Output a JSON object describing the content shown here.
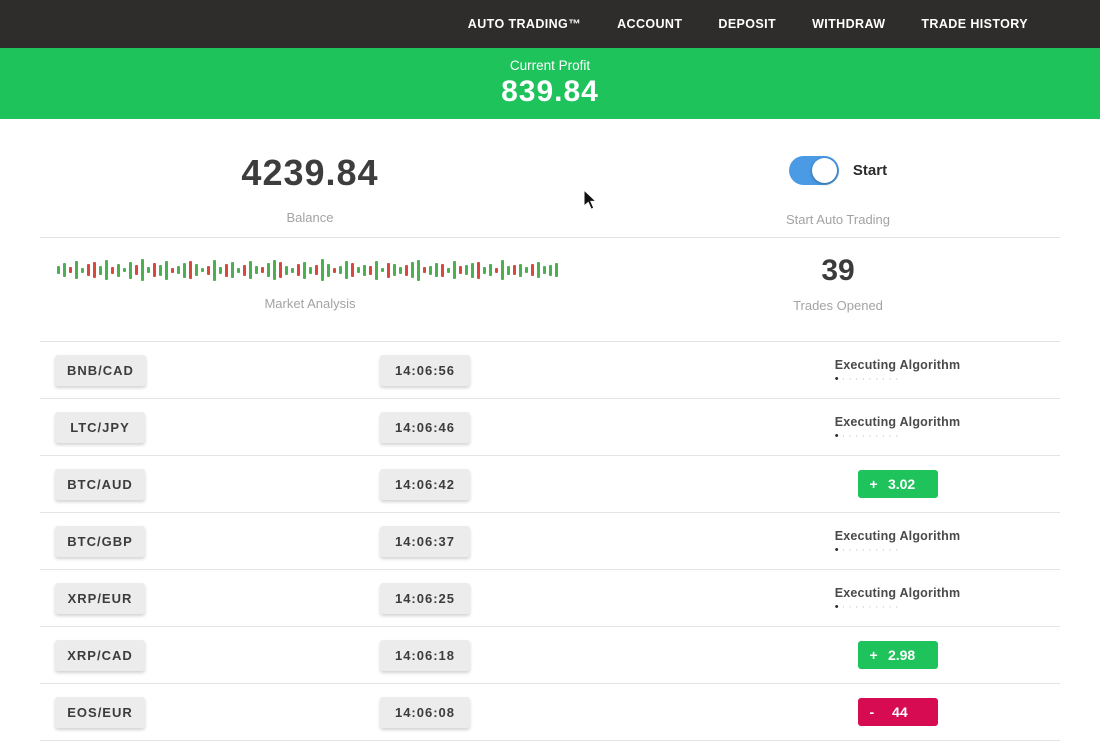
{
  "nav": {
    "items": [
      "AUTO TRADING™",
      "ACCOUNT",
      "DEPOSIT",
      "WITHDRAW",
      "TRADE HISTORY"
    ]
  },
  "banner": {
    "label": "Current Profit",
    "value": "839.84"
  },
  "account": {
    "balance": "4239.84",
    "balance_label": "Balance",
    "toggle_label": "Start",
    "toggle_caption": "Start Auto Trading",
    "toggle_on": true
  },
  "market": {
    "label": "Market Analysis",
    "trades_opened": "39",
    "trades_opened_label": "Trades Opened",
    "sparkline": [
      "g8",
      "g14",
      "r6",
      "g18",
      "g5",
      "r12",
      "r16",
      "g9",
      "g20",
      "r7",
      "g13",
      "g4",
      "g17",
      "r10",
      "g22",
      "g6",
      "r14",
      "g11",
      "g19",
      "r5",
      "g8",
      "g15",
      "r18",
      "g12",
      "g4",
      "r9",
      "g21",
      "g7",
      "r13",
      "g16",
      "g5",
      "r11",
      "g18",
      "g8",
      "r6",
      "g14",
      "g20",
      "r16",
      "g9",
      "g5",
      "r12",
      "g17",
      "g7",
      "r10",
      "g22",
      "g13",
      "r5",
      "g8",
      "g18",
      "r14",
      "g6",
      "g11",
      "r9",
      "g19",
      "g4",
      "r15",
      "g12",
      "g7",
      "r11",
      "g16",
      "g21",
      "r6",
      "g9",
      "g14",
      "r13",
      "g5",
      "g18",
      "r8",
      "g10",
      "g15",
      "r17",
      "g7",
      "g12",
      "r5",
      "g20",
      "g9",
      "r10",
      "g13",
      "g6",
      "r12",
      "g16",
      "g8",
      "g11",
      "g14"
    ]
  },
  "statuses": {
    "executing_label": "Executing Algorithm",
    "dot_active": "•",
    "dot_trail": "·········"
  },
  "trades": [
    {
      "pair": "BNB/CAD",
      "time": "14:06:56",
      "status": "executing"
    },
    {
      "pair": "LTC/JPY",
      "time": "14:06:46",
      "status": "executing"
    },
    {
      "pair": "BTC/AUD",
      "time": "14:06:42",
      "status": "profit",
      "sign": "+",
      "amount": "3.02"
    },
    {
      "pair": "BTC/GBP",
      "time": "14:06:37",
      "status": "executing"
    },
    {
      "pair": "XRP/EUR",
      "time": "14:06:25",
      "status": "executing"
    },
    {
      "pair": "XRP/CAD",
      "time": "14:06:18",
      "status": "profit",
      "sign": "+",
      "amount": "2.98"
    },
    {
      "pair": "EOS/EUR",
      "time": "14:06:08",
      "status": "loss",
      "sign": "-",
      "amount": "44"
    }
  ],
  "colors": {
    "nav_bg": "#2e2d2c",
    "banner_bg": "#1fc35c",
    "profit": "#1fc35c",
    "loss": "#d60b52",
    "toggle": "#4a9ae4"
  }
}
